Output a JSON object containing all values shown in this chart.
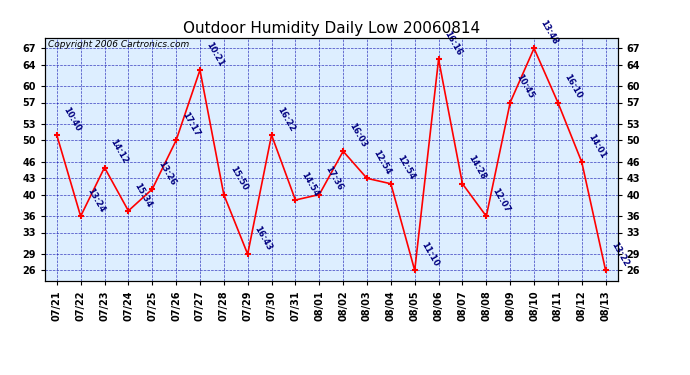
{
  "title": "Outdoor Humidity Daily Low 20060814",
  "copyright": "Copyright 2006 Cartronics.com",
  "dates": [
    "07/21",
    "07/22",
    "07/23",
    "07/24",
    "07/25",
    "07/26",
    "07/27",
    "07/28",
    "07/29",
    "07/30",
    "07/31",
    "08/01",
    "08/02",
    "08/03",
    "08/04",
    "08/05",
    "08/06",
    "08/07",
    "08/08",
    "08/09",
    "08/10",
    "08/11",
    "08/12",
    "08/13"
  ],
  "values": [
    51,
    36,
    45,
    37,
    41,
    50,
    63,
    40,
    29,
    51,
    39,
    40,
    48,
    43,
    42,
    26,
    65,
    42,
    36,
    57,
    67,
    57,
    46,
    26
  ],
  "times": [
    "10:40",
    "13:24",
    "14:12",
    "15:34",
    "13:26",
    "17:17",
    "10:21",
    "15:50",
    "16:43",
    "16:22",
    "14:54",
    "17:36",
    "16:03",
    "12:54",
    "12:54",
    "11:10",
    "16:16",
    "14:28",
    "12:07",
    "10:45",
    "13:48",
    "16:10",
    "14:01",
    "13:22"
  ],
  "yticks": [
    26,
    29,
    33,
    36,
    40,
    43,
    46,
    50,
    53,
    57,
    60,
    64,
    67
  ],
  "ylim": [
    24,
    69
  ],
  "line_color": "#FF0000",
  "marker_color": "#FF0000",
  "bg_color": "#DDEEFF",
  "grid_color": "#0000AA",
  "title_fontsize": 11,
  "tick_fontsize": 7,
  "annot_fontsize": 6,
  "copyright_fontsize": 6.5
}
